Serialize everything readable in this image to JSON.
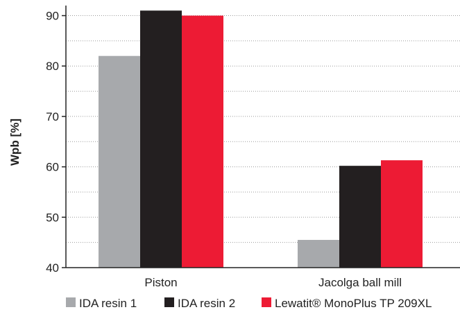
{
  "chart_data": {
    "type": "bar",
    "categories": [
      "Piston",
      "Jacolga ball mill"
    ],
    "series": [
      {
        "name": "IDA resin 1",
        "values": [
          82,
          45.5
        ],
        "color": "#a7a9ac"
      },
      {
        "name": "IDA resin 2",
        "values": [
          91,
          60.2
        ],
        "color": "#231f20"
      },
      {
        "name": "Lewatit® MonoPlus TP 209XL",
        "values": [
          90,
          61.3
        ],
        "color": "#ed1b34"
      }
    ],
    "title": "",
    "xlabel": "",
    "ylabel": "Wpb [%]",
    "ylim": [
      40,
      92
    ],
    "yticks": [
      40,
      50,
      60,
      70,
      80,
      90
    ],
    "grid": "horizontal-dotted",
    "legend_position": "bottom"
  }
}
